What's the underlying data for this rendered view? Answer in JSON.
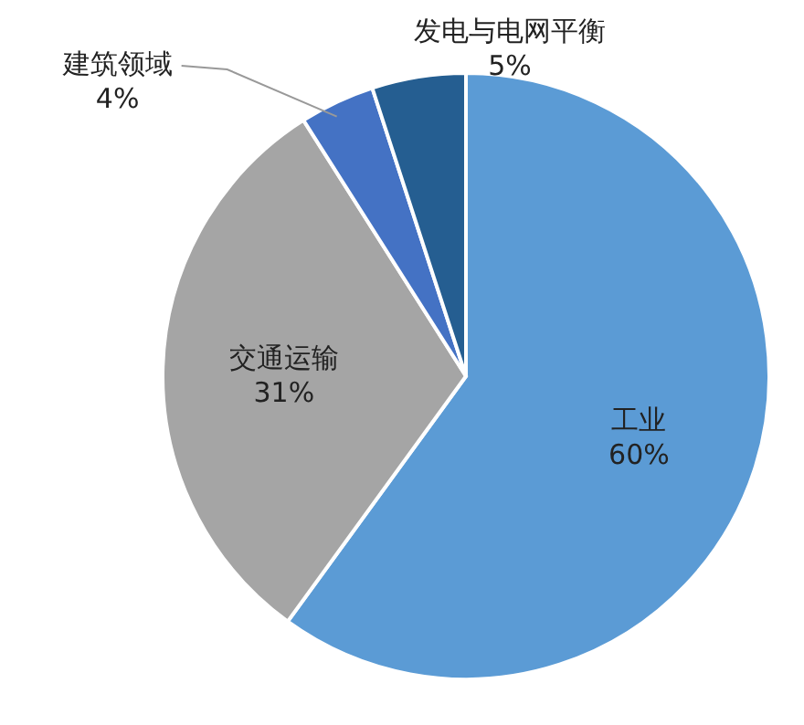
{
  "chart_data": {
    "type": "pie",
    "categories": [
      "工业",
      "交通运输",
      "建筑领域",
      "发电与电网平衡"
    ],
    "values": [
      60,
      31,
      4,
      5
    ],
    "value_labels": [
      "60%",
      "31%",
      "4%",
      "5%"
    ],
    "colors": [
      "#5b9bd5",
      "#a5a5a5",
      "#4472c4",
      "#255e91"
    ]
  }
}
